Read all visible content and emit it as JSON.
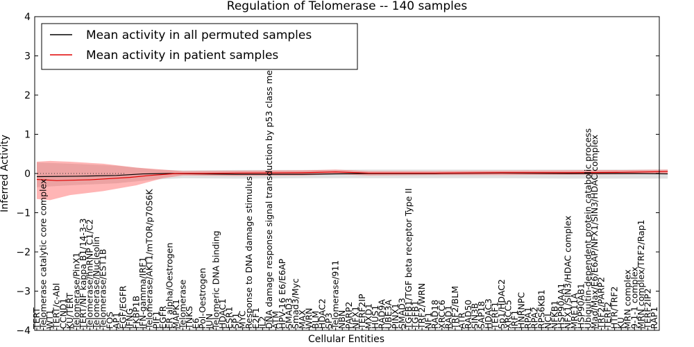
{
  "chart_data": {
    "type": "line",
    "title": "Regulation of Telomerase -- 140 samples",
    "xlabel": "Cellular Entities",
    "ylabel": "Inferred Activity",
    "ylim": [
      -4,
      4
    ],
    "yticks": [
      -4,
      -3,
      -2,
      -1,
      0,
      1,
      2,
      3,
      4
    ],
    "categories": [
      "TERT",
      "Telomerase catalytic core complex",
      "WT1",
      "TERT/c-Abl",
      "CCND1",
      "KU/TERT",
      "Telomerase/PinX1",
      "TERT/NF kappa B1/14-3-3",
      "Telomerase/hnRNP C1/C2",
      "Telomerase/Nucleolin",
      "Telomerase/EST1B",
      "FOS",
      "AP1",
      "EGF/EGFR",
      "IFNG",
      "FKBP1B",
      "IFN-gamma/IRF1",
      "Telomerase/AKT1/mTOR/p70S6K",
      "PIF1",
      "EGFR",
      "ER alpha/Oestrogen",
      "MAPK1",
      "Telomerase",
      "TNKS",
      "E6",
      "Pol-Oestrogen",
      "JUN",
      "Telomeric DNA binding",
      "HDAC1",
      "ESR1",
      "SP1",
      "MYC",
      "Response to DNA damage stimulus",
      "E2F1",
      "IL2",
      "DNA damage response signal transduction by p53 class mediator",
      "ATM",
      "HPV-16 E6/E6AP",
      "SMAD3",
      "Smad3/Myc",
      "MAX",
      "WRN",
      "BLM",
      "HDAC2",
      "SP3",
      "Telomerase/911",
      "NBN",
      "PARP2",
      "NFX1",
      "TERF2IP",
      "MXD1",
      "HUS1",
      "RAD9A",
      "UBE3A",
      "PINX1",
      "SMAD3",
      "TGFB1/TGF beta receptor Type II",
      "TGFB1",
      "TRF2/WRN",
      "NF1",
      "RAD18",
      "XRCC6",
      "RAD1",
      "TRF2/BLM",
      "ATR",
      "RAD50",
      "SIN3B",
      "SAP18",
      "HDAC3",
      "TERF1",
      "Sp1/HDAC2",
      "XRCC5",
      "IRF1",
      "HNRNPC",
      "RPA1",
      "RPA2",
      "RPS6KB1",
      "NCL",
      "NFKB1",
      "HSP90AA1",
      "NFX1/SIN3/HDAC complex",
      "MRE11A",
      "HSP90AB1",
      "Ubiquitin-dependent protein catabolic process",
      "Mad/Max/E6/E6AP/NFX1/SIN3/HDAC complex",
      "TRF2/PARP2",
      "TERF2",
      "HTR/TRF2",
      "KU",
      "MRN complex",
      "9-1-1 complex",
      "MRN complex/TRF2/Rap1",
      "TERF2IP2",
      "RAP1"
    ],
    "series": [
      {
        "name": "Mean activity in all permuted samples",
        "color": "#000000",
        "points": [
          [
            0,
            -0.08
          ],
          [
            6,
            -0.07
          ],
          [
            12,
            -0.05
          ],
          [
            16,
            -0.01
          ],
          [
            20,
            0.0
          ],
          [
            30,
            -0.02
          ],
          [
            40,
            -0.02
          ],
          [
            50,
            0.0
          ],
          [
            60,
            0.0
          ],
          [
            70,
            0.01
          ],
          [
            80,
            0.0
          ],
          [
            90,
            0.0
          ],
          [
            95,
            -0.01
          ]
        ],
        "band": [
          [
            0,
            -0.35,
            0.28
          ],
          [
            5,
            -0.3,
            0.25
          ],
          [
            12,
            -0.25,
            0.2
          ],
          [
            18,
            -0.15,
            0.1
          ],
          [
            22,
            -0.12,
            0.08
          ],
          [
            30,
            -0.13,
            0.09
          ],
          [
            40,
            -0.12,
            0.09
          ],
          [
            50,
            -0.12,
            0.1
          ],
          [
            60,
            -0.12,
            0.1
          ],
          [
            70,
            -0.12,
            0.1
          ],
          [
            80,
            -0.13,
            0.1
          ],
          [
            90,
            -0.13,
            0.1
          ],
          [
            95,
            -0.13,
            0.1
          ]
        ]
      },
      {
        "name": "Mean activity in patient samples",
        "color": "#e00000",
        "points": [
          [
            0,
            -0.15
          ],
          [
            3,
            -0.18
          ],
          [
            8,
            -0.16
          ],
          [
            14,
            -0.1
          ],
          [
            17,
            -0.05
          ],
          [
            21,
            0.0
          ],
          [
            25,
            0.0
          ],
          [
            30,
            0.01
          ],
          [
            40,
            0.02
          ],
          [
            45,
            0.04
          ],
          [
            50,
            0.01
          ],
          [
            60,
            0.01
          ],
          [
            70,
            0.02
          ],
          [
            80,
            0.02
          ],
          [
            88,
            0.03
          ],
          [
            95,
            0.05
          ]
        ],
        "band": [
          [
            0,
            -0.65,
            0.3
          ],
          [
            2,
            -0.68,
            0.32
          ],
          [
            5,
            -0.55,
            0.3
          ],
          [
            10,
            -0.45,
            0.25
          ],
          [
            15,
            -0.3,
            0.15
          ],
          [
            19,
            -0.12,
            0.1
          ],
          [
            22,
            -0.05,
            0.06
          ],
          [
            30,
            -0.06,
            0.07
          ],
          [
            40,
            -0.05,
            0.08
          ],
          [
            45,
            -0.02,
            0.1
          ],
          [
            50,
            -0.05,
            0.06
          ],
          [
            60,
            -0.04,
            0.06
          ],
          [
            70,
            -0.04,
            0.07
          ],
          [
            80,
            -0.03,
            0.08
          ],
          [
            90,
            -0.02,
            0.09
          ],
          [
            95,
            0.0,
            0.1
          ]
        ]
      }
    ],
    "legend": {
      "position": "top-left"
    }
  }
}
